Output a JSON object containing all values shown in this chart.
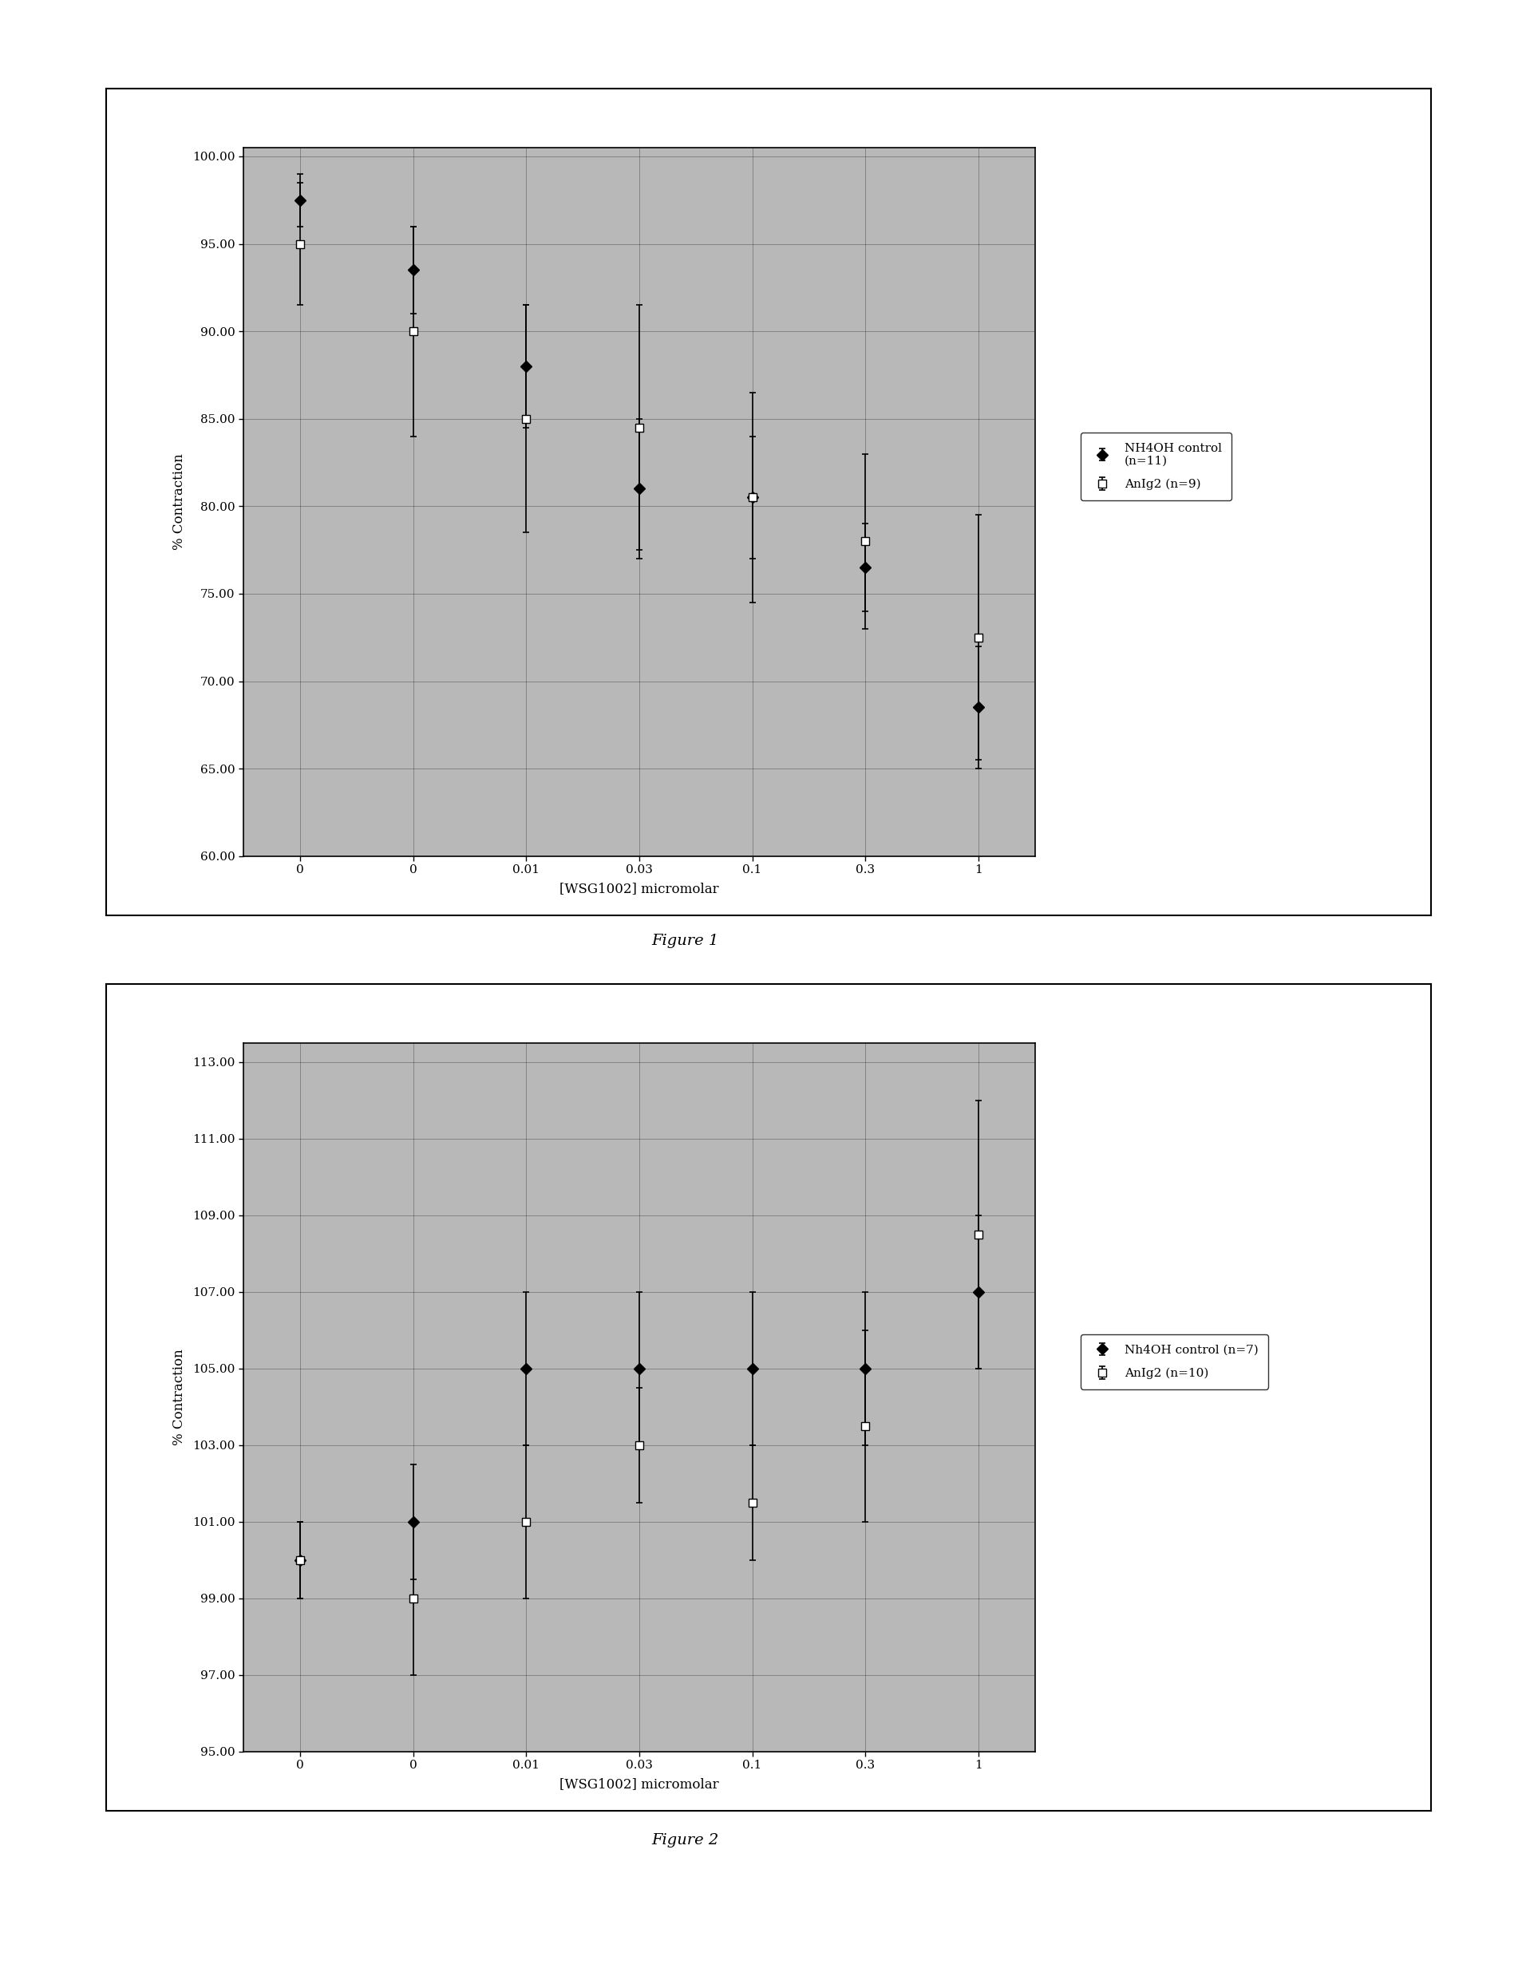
{
  "fig1": {
    "x_labels": [
      "0",
      "0",
      "0.01",
      "0.03",
      "0.1",
      "0.3",
      "1"
    ],
    "x_positions": [
      0,
      1,
      2,
      3,
      4,
      5,
      6
    ],
    "series1": {
      "label": "NH4OH control\n(n=11)",
      "y": [
        97.5,
        93.5,
        88.0,
        81.0,
        80.5,
        76.5,
        68.5
      ],
      "yerr_low": [
        1.5,
        2.5,
        3.5,
        4.0,
        3.5,
        2.5,
        3.5
      ],
      "yerr_high": [
        1.5,
        2.5,
        3.5,
        4.0,
        3.5,
        2.5,
        3.5
      ],
      "color": "#000000",
      "marker": "D",
      "markersize": 7,
      "linestyle": "-"
    },
    "series2": {
      "label": "AnIg2 (n=9)",
      "y": [
        95.0,
        90.0,
        85.0,
        84.5,
        80.5,
        78.0,
        72.5
      ],
      "yerr_low": [
        3.5,
        6.0,
        6.5,
        7.0,
        6.0,
        5.0,
        7.0
      ],
      "yerr_high": [
        3.5,
        6.0,
        6.5,
        7.0,
        6.0,
        5.0,
        7.0
      ],
      "color": "#000000",
      "marker": "s",
      "markersize": 7,
      "linestyle": "-"
    },
    "ylabel": "% Contraction",
    "xlabel": "[WSG1002] micromolar",
    "ylim": [
      60.0,
      100.5
    ],
    "yticks": [
      60.0,
      65.0,
      70.0,
      75.0,
      80.0,
      85.0,
      90.0,
      95.0,
      100.0
    ],
    "figure_label": "Figure 1",
    "bg_color": "#b8b8b8"
  },
  "fig2": {
    "x_labels": [
      "0",
      "0",
      "0.01",
      "0.03",
      "0.1",
      "0.3",
      "1"
    ],
    "x_positions": [
      0,
      1,
      2,
      3,
      4,
      5,
      6
    ],
    "series1": {
      "label": "Nh4OH control (n=7)",
      "y": [
        100.0,
        101.0,
        105.0,
        105.0,
        105.0,
        105.0,
        107.0
      ],
      "yerr_low": [
        1.0,
        1.5,
        2.0,
        2.0,
        2.0,
        2.0,
        2.0
      ],
      "yerr_high": [
        1.0,
        1.5,
        2.0,
        2.0,
        2.0,
        2.0,
        2.0
      ],
      "color": "#000000",
      "marker": "D",
      "markersize": 7,
      "linestyle": "-"
    },
    "series2": {
      "label": "AnIg2 (n=10)",
      "y": [
        100.0,
        99.0,
        101.0,
        103.0,
        101.5,
        103.5,
        108.5
      ],
      "yerr_low": [
        1.0,
        2.0,
        2.0,
        1.5,
        1.5,
        2.5,
        3.5
      ],
      "yerr_high": [
        1.0,
        2.0,
        2.0,
        1.5,
        1.5,
        2.5,
        3.5
      ],
      "color": "#000000",
      "marker": "s",
      "markersize": 7,
      "linestyle": "-"
    },
    "ylabel": "% Contraction",
    "xlabel": "[WSG1002] micromolar",
    "ylim": [
      95.0,
      113.5
    ],
    "yticks": [
      95.0,
      97.0,
      99.0,
      101.0,
      103.0,
      105.0,
      107.0,
      109.0,
      111.0,
      113.0
    ],
    "figure_label": "Figure 2",
    "bg_color": "#b8b8b8"
  },
  "page_bg": "#ffffff"
}
